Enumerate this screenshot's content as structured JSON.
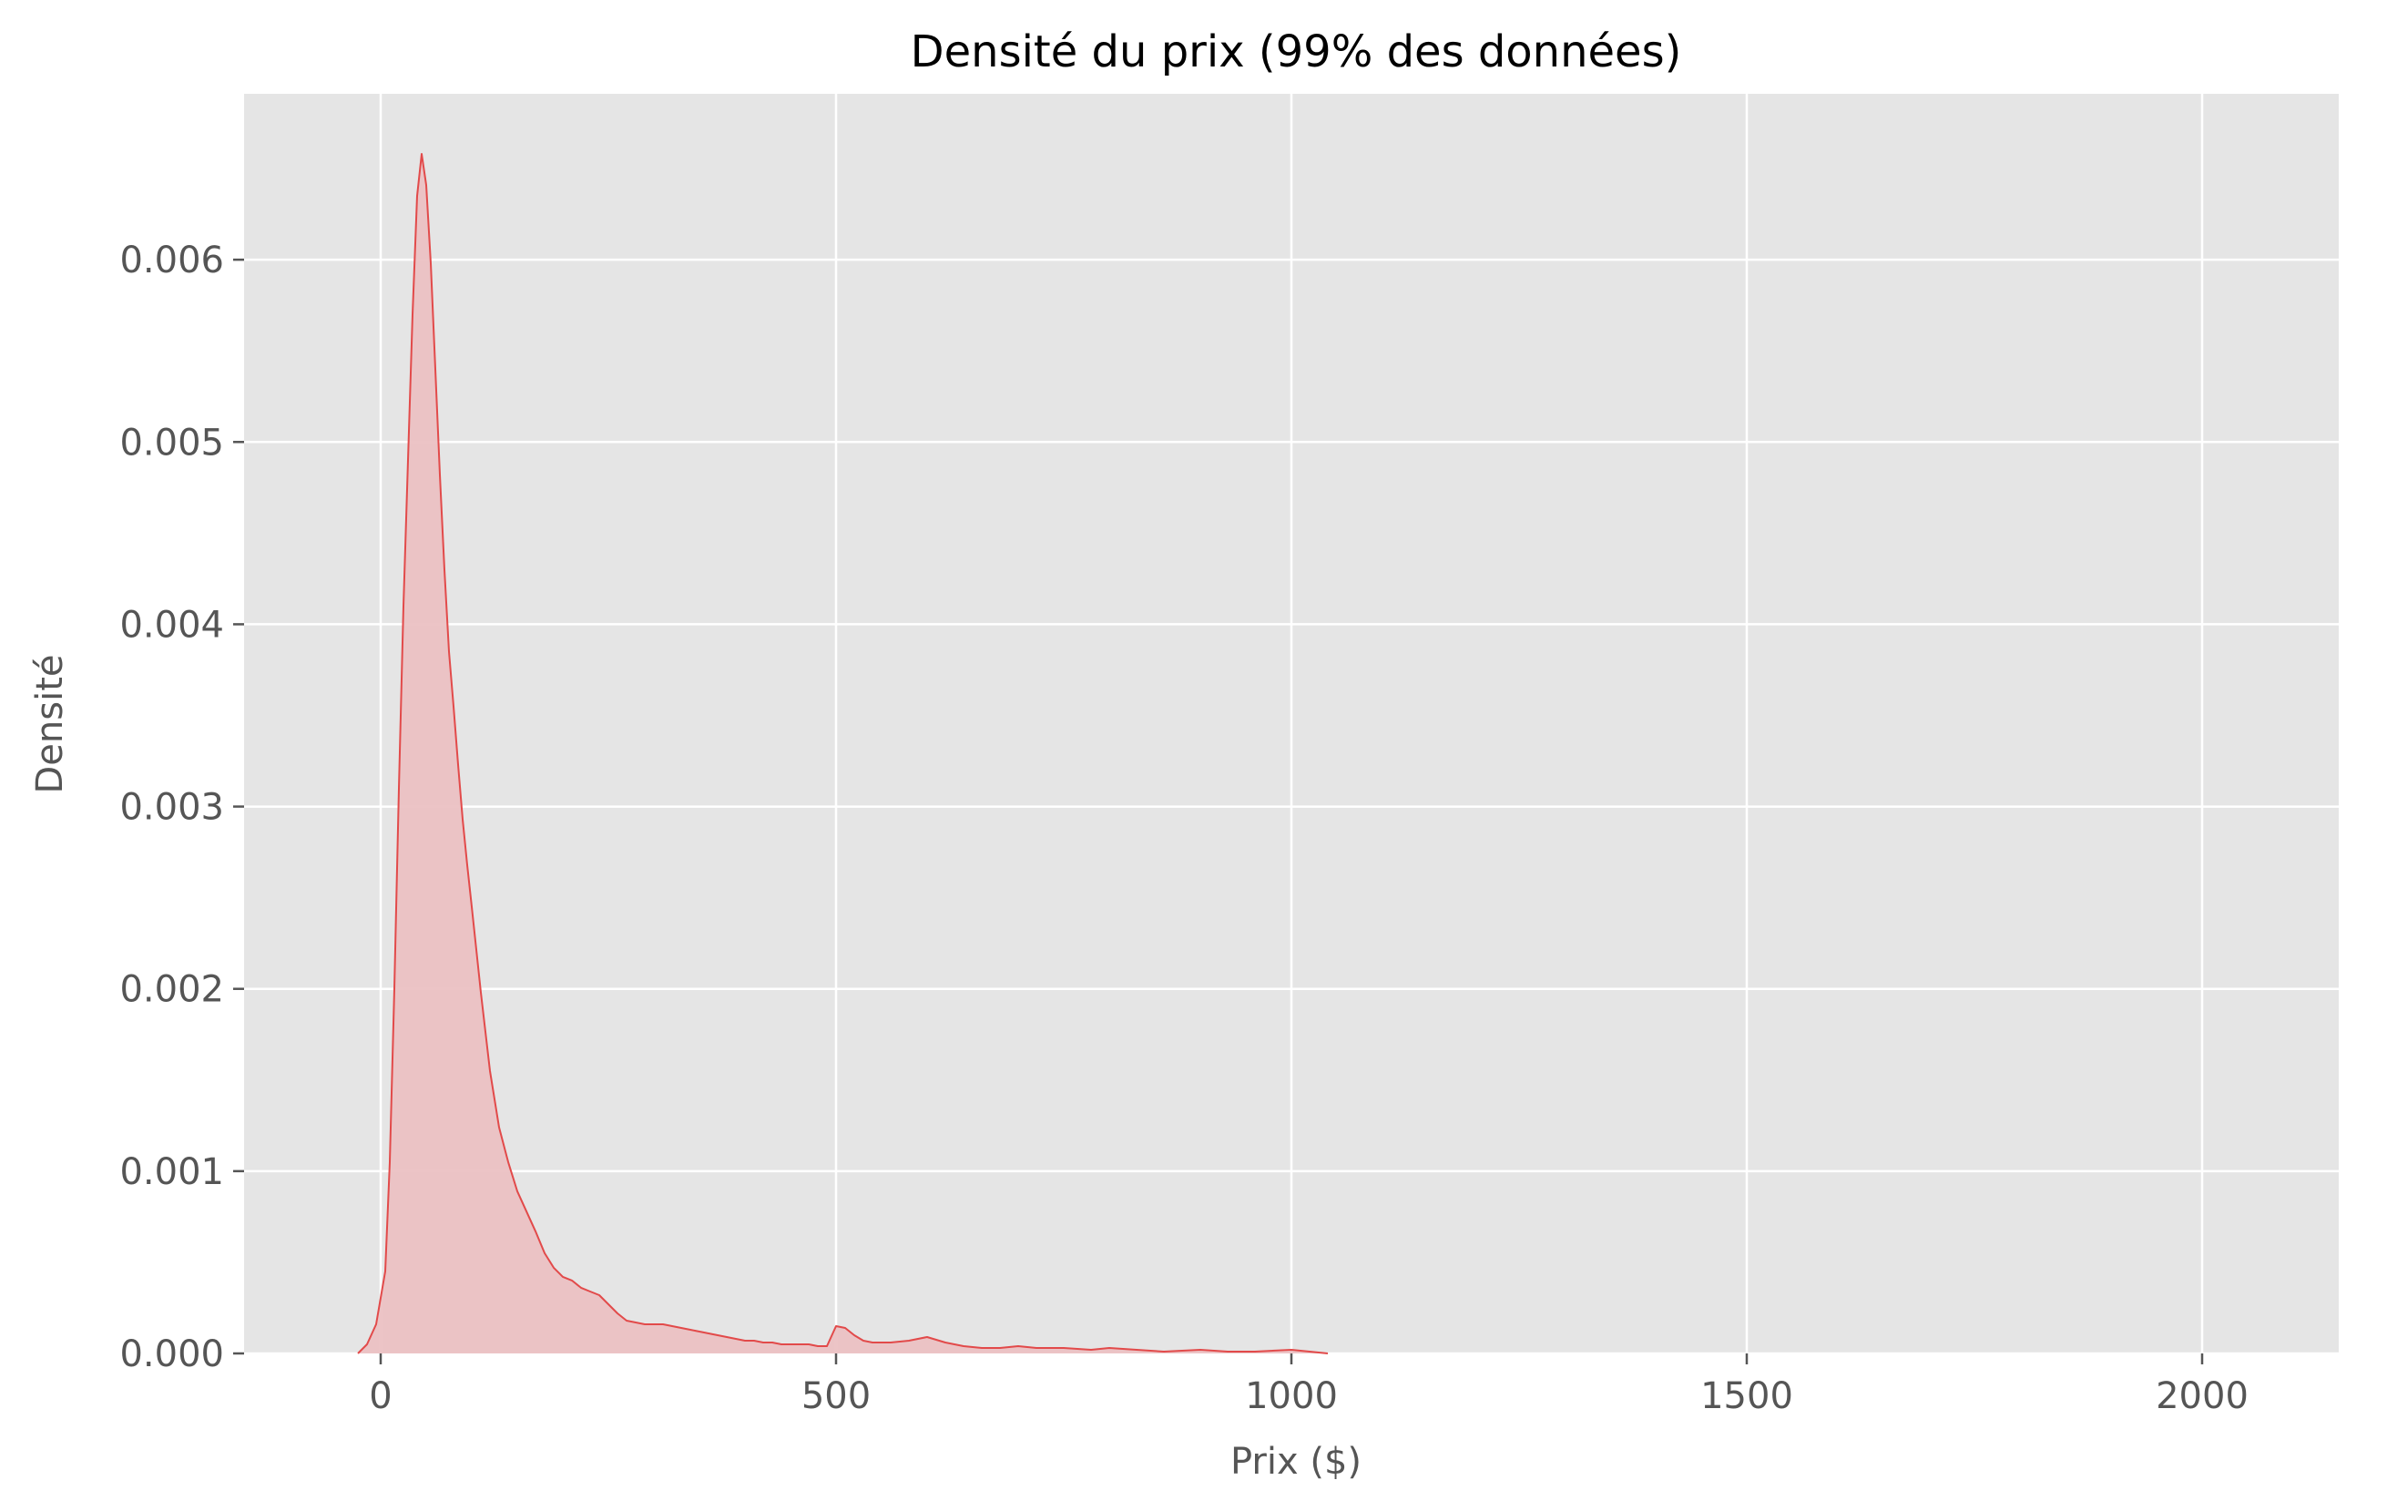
{
  "chart_data": {
    "type": "area",
    "title": "Densité du prix (99% des données)",
    "xlabel": "Prix ($)",
    "ylabel": "Densité",
    "xlim": [
      -150,
      2150
    ],
    "ylim": [
      0,
      0.00691
    ],
    "xticks": [
      0,
      500,
      1000,
      1500,
      2000
    ],
    "xtick_labels": [
      "0",
      "500",
      "1000",
      "1500",
      "2000"
    ],
    "yticks": [
      0,
      0.001,
      0.002,
      0.003,
      0.004,
      0.005,
      0.006
    ],
    "ytick_labels": [
      "0.000",
      "0.001",
      "0.002",
      "0.003",
      "0.004",
      "0.005",
      "0.006"
    ],
    "grid": true,
    "legend": false,
    "colors": {
      "background": "#E5E5E5",
      "grid": "#FFFFFF",
      "line": "#E24A4A",
      "fill": "#EBC1C3"
    },
    "series": [
      {
        "x": [
          -25,
          -15,
          -5,
          5,
          10,
          15,
          20,
          25,
          30,
          35,
          40,
          45,
          50,
          55,
          60,
          65,
          70,
          75,
          80,
          85,
          90,
          95,
          100,
          110,
          120,
          130,
          140,
          150,
          160,
          170,
          180,
          190,
          200,
          210,
          220,
          230,
          240,
          250,
          260,
          270,
          280,
          290,
          300,
          310,
          320,
          330,
          340,
          350,
          360,
          370,
          380,
          390,
          400,
          410,
          420,
          430,
          440,
          450,
          460,
          470,
          480,
          490,
          500,
          510,
          520,
          530,
          540,
          550,
          560,
          580,
          600,
          620,
          640,
          660,
          680,
          700,
          720,
          750,
          780,
          800,
          830,
          860,
          900,
          930,
          960,
          1000,
          1020,
          1040
        ],
        "y": [
          0.0,
          5e-05,
          0.00016,
          0.00045,
          0.00105,
          0.002,
          0.0031,
          0.0041,
          0.0049,
          0.0057,
          0.00635,
          0.00658,
          0.00641,
          0.00598,
          0.0054,
          0.00482,
          0.0043,
          0.00385,
          0.00355,
          0.00323,
          0.00293,
          0.00268,
          0.00245,
          0.00198,
          0.00155,
          0.00124,
          0.00105,
          0.00089,
          0.00078,
          0.00067,
          0.00055,
          0.00047,
          0.00042,
          0.0004,
          0.00036,
          0.00034,
          0.00032,
          0.00027,
          0.00022,
          0.00018,
          0.00017,
          0.00016,
          0.00016,
          0.00016,
          0.00015,
          0.00014,
          0.00013,
          0.00012,
          0.00011,
          0.0001,
          9e-05,
          8e-05,
          7e-05,
          7e-05,
          6e-05,
          6e-05,
          5e-05,
          5e-05,
          5e-05,
          5e-05,
          4e-05,
          4e-05,
          0.00015,
          0.00014,
          0.0001,
          7e-05,
          6e-05,
          6e-05,
          6e-05,
          7e-05,
          9e-05,
          6e-05,
          4e-05,
          3e-05,
          3e-05,
          4e-05,
          3e-05,
          3e-05,
          2e-05,
          3e-05,
          2e-05,
          1e-05,
          2e-05,
          1e-05,
          1e-05,
          2e-05,
          1e-05,
          0.0
        ]
      }
    ]
  }
}
